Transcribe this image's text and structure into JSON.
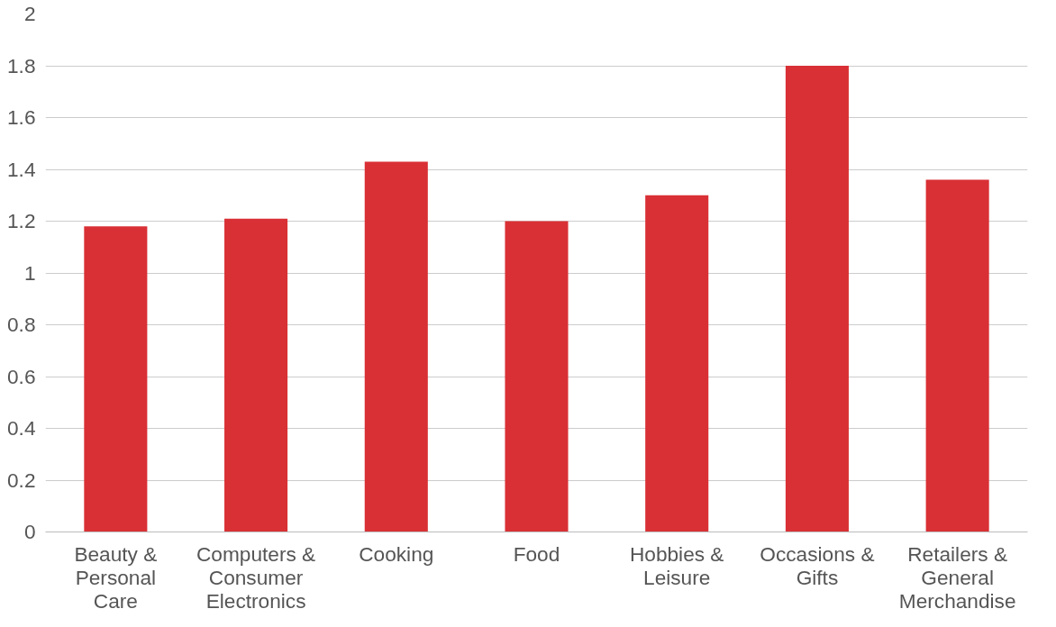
{
  "chart_data": {
    "type": "bar",
    "categories": [
      "Beauty & Personal Care",
      "Computers & Consumer Electronics",
      "Cooking",
      "Food",
      "Hobbies & Leisure",
      "Occasions & Gifts",
      "Retailers & General Merchandise"
    ],
    "values": [
      1.18,
      1.21,
      1.43,
      1.2,
      1.3,
      1.8,
      1.36
    ],
    "color": "#d93035",
    "ylim": [
      0,
      2
    ],
    "yticks": [
      0,
      0.2,
      0.4,
      0.6,
      0.8,
      1,
      1.2,
      1.4,
      1.6,
      1.8,
      2
    ],
    "grid": "y"
  }
}
